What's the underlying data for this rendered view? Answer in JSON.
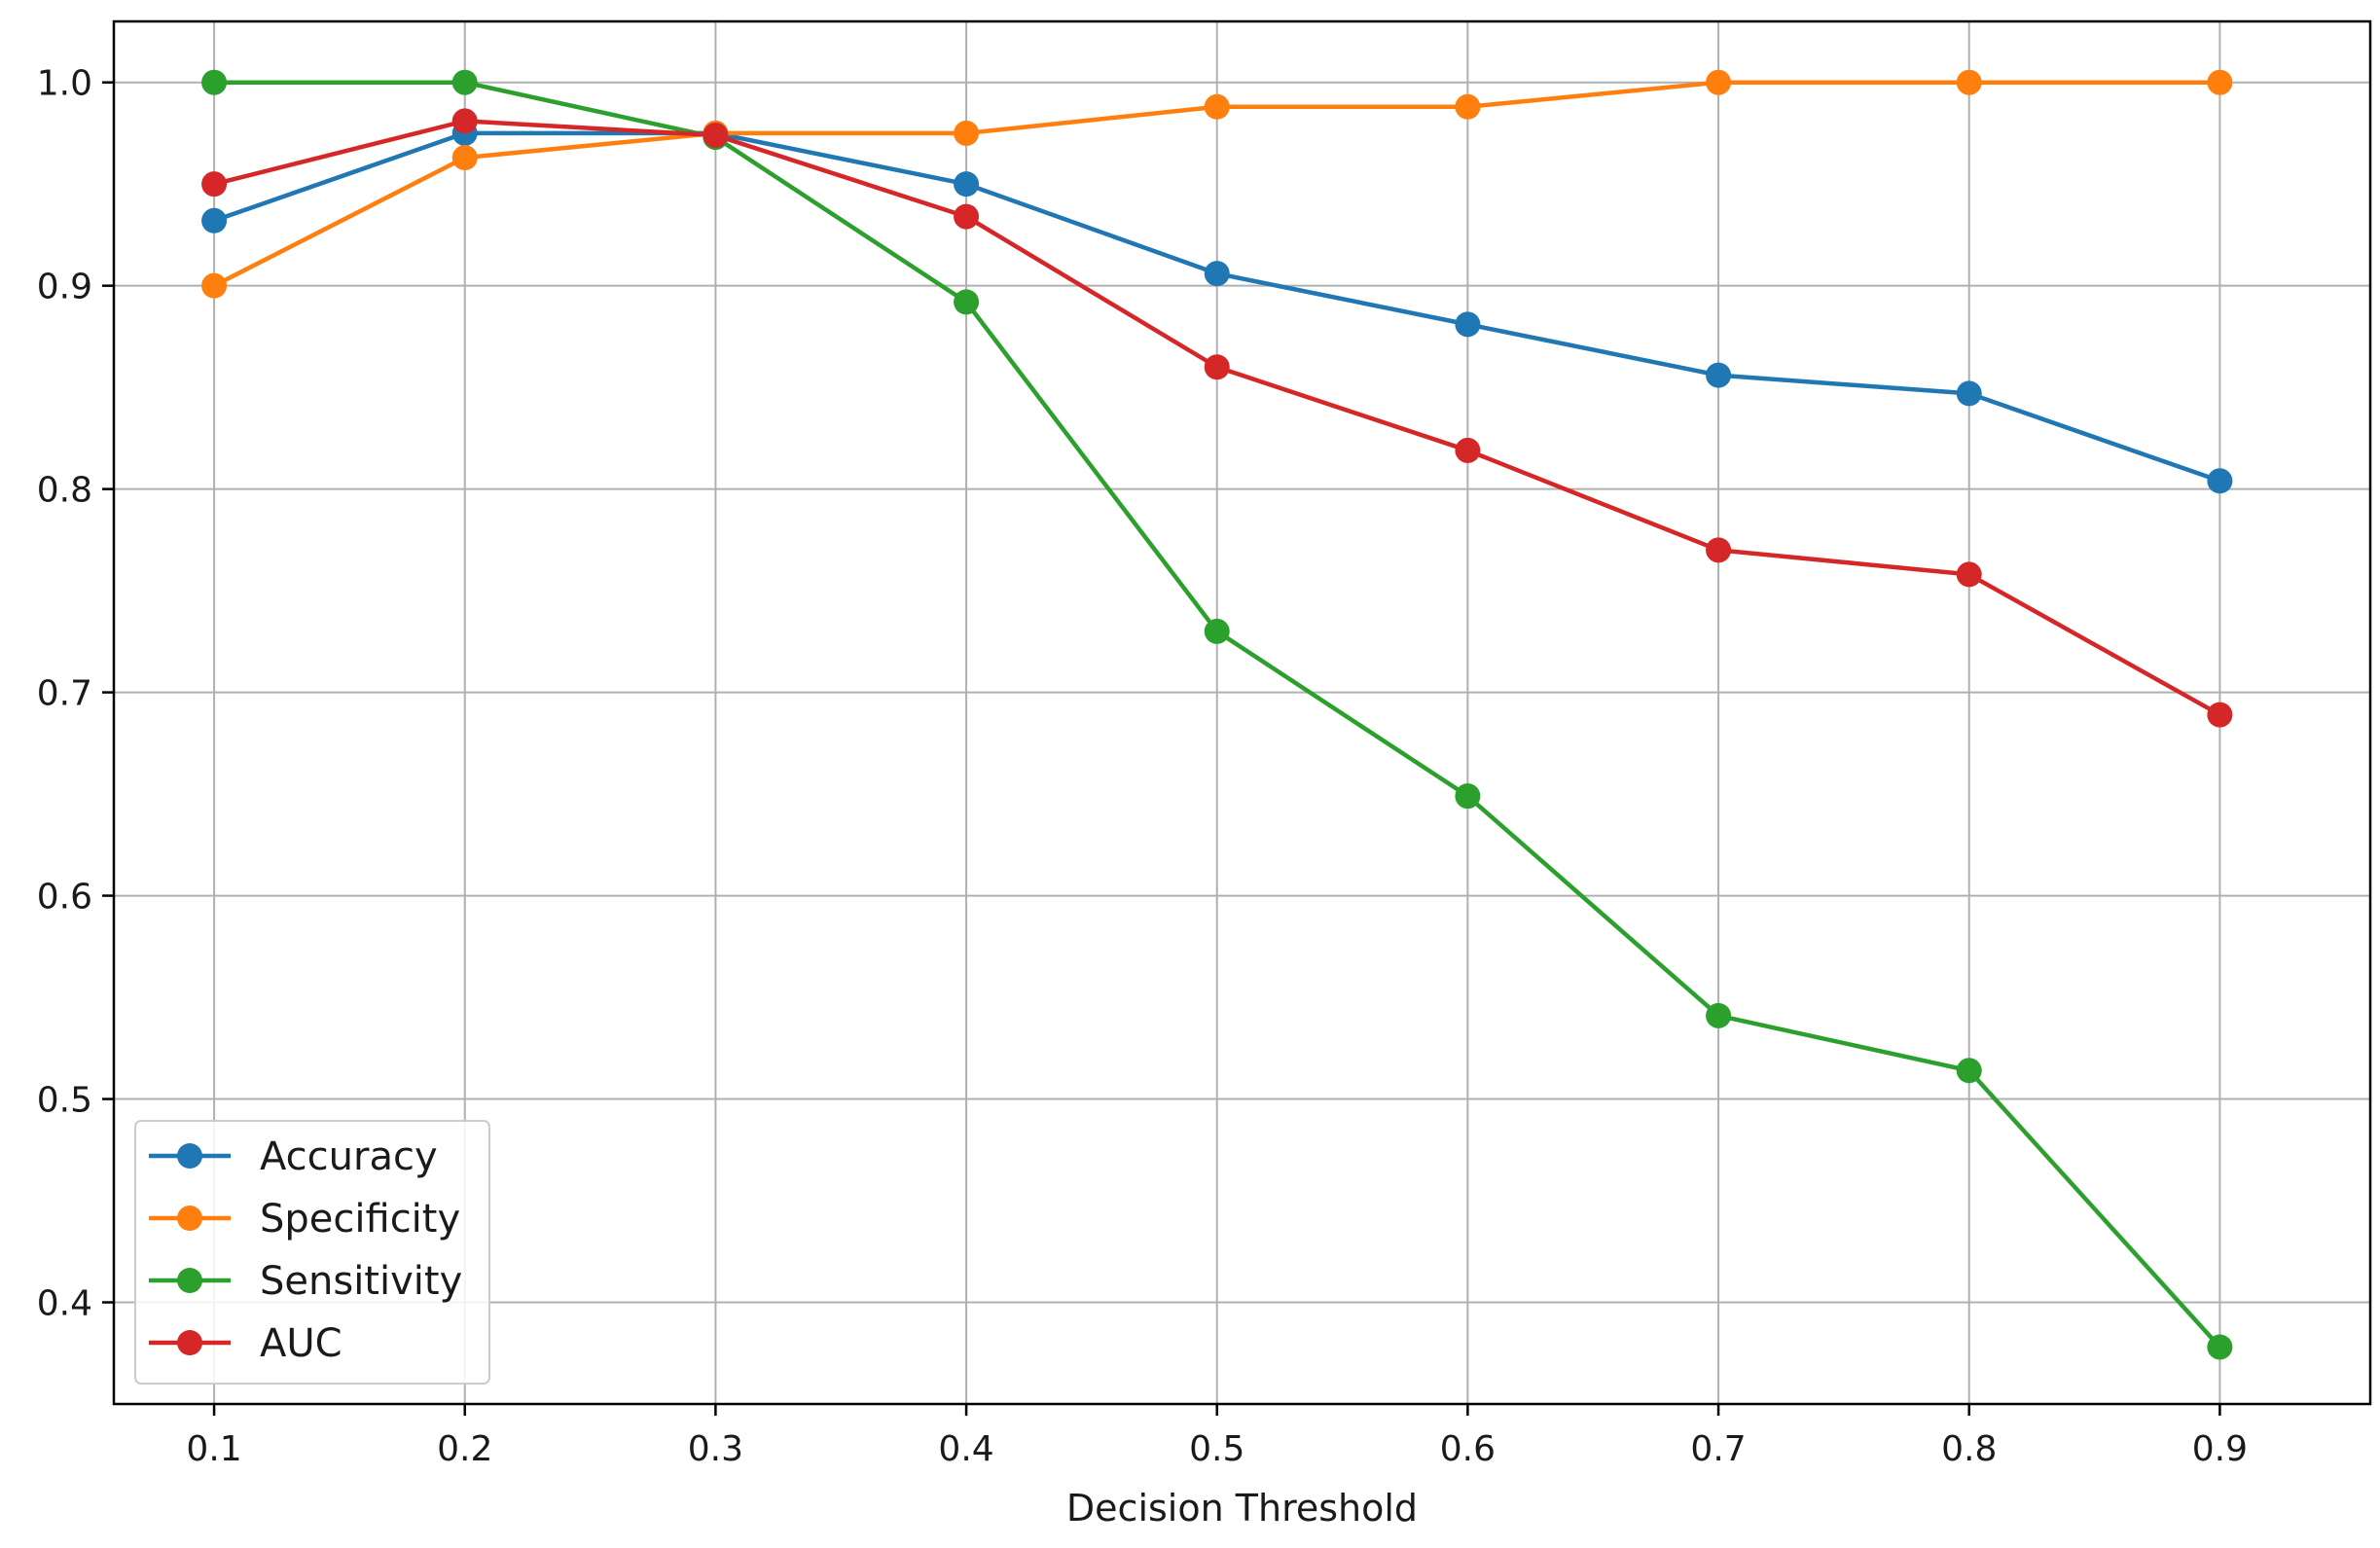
{
  "chart_data": {
    "type": "line",
    "title": "",
    "xlabel": "Decision Threshold",
    "ylabel": "",
    "x": [
      0.1,
      0.2,
      0.3,
      0.4,
      0.5,
      0.6,
      0.7,
      0.8,
      0.9
    ],
    "x_tick_labels": [
      "0.1",
      "0.2",
      "0.3",
      "0.4",
      "0.5",
      "0.6",
      "0.7",
      "0.8",
      "0.9"
    ],
    "y_ticks": [
      0.4,
      0.5,
      0.6,
      0.7,
      0.8,
      0.9,
      1.0
    ],
    "y_tick_labels": [
      "0.4",
      "0.5",
      "0.6",
      "0.7",
      "0.8",
      "0.9",
      "1.0"
    ],
    "xlim": [
      0.06,
      0.96
    ],
    "ylim": [
      0.35,
      1.03
    ],
    "grid": true,
    "legend_position": "lower-left",
    "series": [
      {
        "name": "Accuracy",
        "color": "#1f77b4",
        "values": [
          0.932,
          0.975,
          0.975,
          0.95,
          0.906,
          0.881,
          0.856,
          0.847,
          0.804
        ]
      },
      {
        "name": "Specificity",
        "color": "#ff7f0e",
        "values": [
          0.9,
          0.963,
          0.975,
          0.975,
          0.988,
          0.988,
          1.0,
          1.0,
          1.0
        ]
      },
      {
        "name": "Sensitivity",
        "color": "#2ca02c",
        "values": [
          1.0,
          1.0,
          0.973,
          0.892,
          0.73,
          0.649,
          0.541,
          0.514,
          0.378
        ]
      },
      {
        "name": "AUC",
        "color": "#d62728",
        "values": [
          0.95,
          0.981,
          0.974,
          0.934,
          0.86,
          0.819,
          0.77,
          0.758,
          0.689
        ]
      }
    ]
  }
}
